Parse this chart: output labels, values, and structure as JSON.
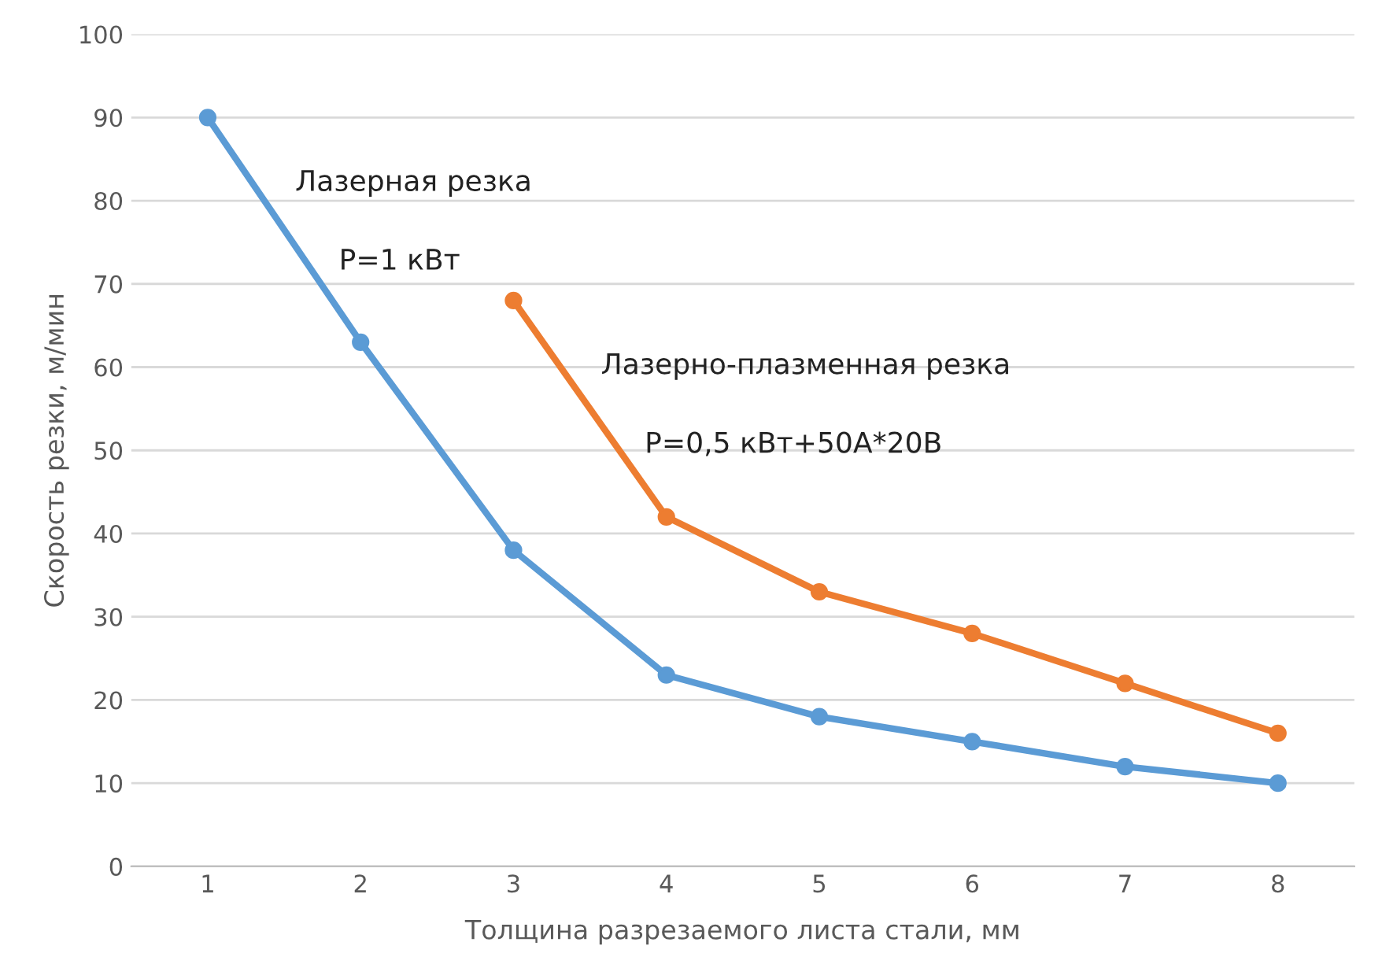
{
  "chart_data": {
    "type": "line",
    "xlabel": "Толщина разрезаемого листа стали, мм",
    "ylabel": "Скорость резки, м/мин",
    "categories": [
      "1",
      "2",
      "3",
      "4",
      "5",
      "6",
      "7",
      "8"
    ],
    "series": [
      {
        "name": "Лазерная резка",
        "color": "#5b9bd5",
        "values": [
          90,
          63,
          38,
          23,
          18,
          15,
          12,
          10
        ]
      },
      {
        "name": "Лазерно-плазменная резка",
        "color": "#ed7d31",
        "values": [
          null,
          null,
          68,
          42,
          33,
          28,
          22,
          16
        ]
      }
    ],
    "annotations": [
      "P=1 кВт",
      "P=0,5 кВт+50А*20В"
    ],
    "ylim": [
      0,
      100
    ],
    "yticks": [
      0,
      10,
      20,
      30,
      40,
      50,
      60,
      70,
      80,
      90,
      100
    ],
    "grid": "y",
    "legend": false,
    "marker": "circle",
    "line_style": "solid"
  }
}
